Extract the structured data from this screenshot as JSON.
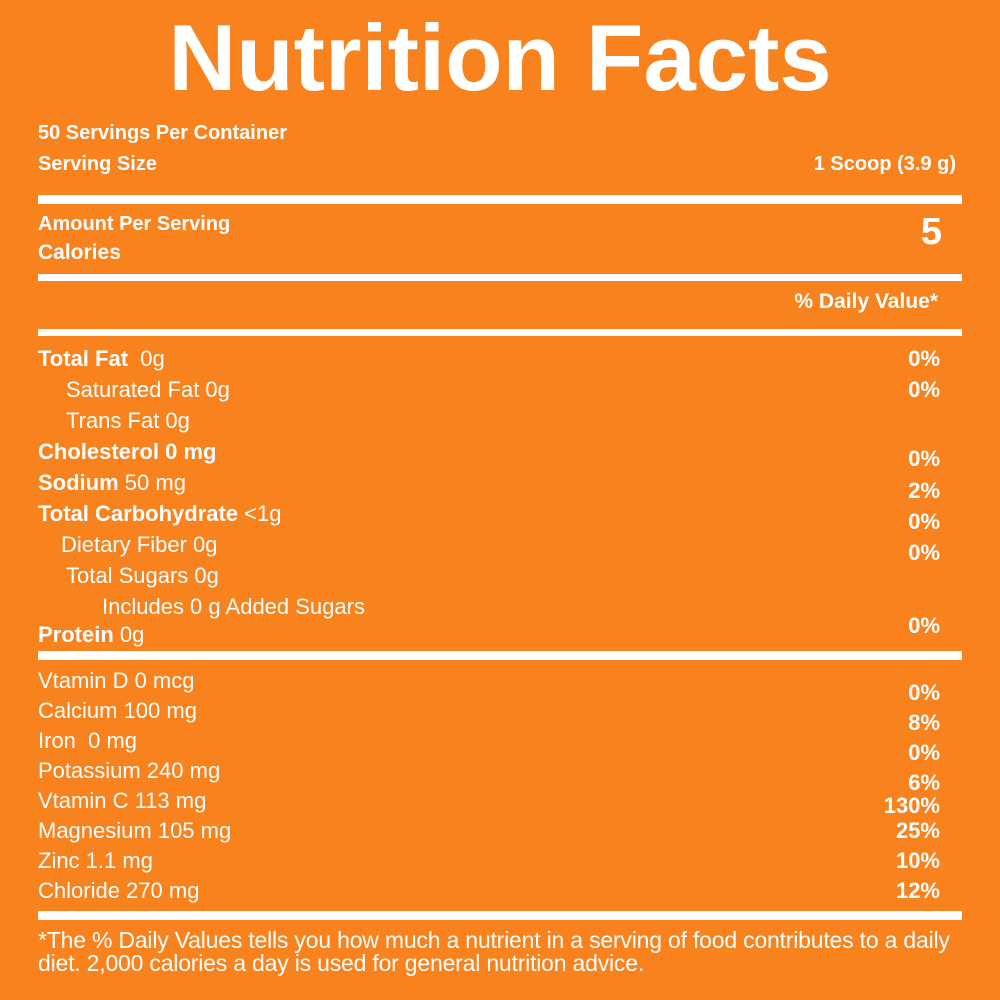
{
  "colors": {
    "background": "#F8821E",
    "text": "#FFFFFF"
  },
  "title": "Nutrition Facts",
  "servings": {
    "per_container": "50 Servings Per Container",
    "serving_size_label": "Serving Size",
    "serving_size_value": "1 Scoop (3.9 g)"
  },
  "calories": {
    "amount_per_serving_label": "Amount Per Serving",
    "calories_label": "Calories",
    "value": "5"
  },
  "daily_value_header": "% Daily Value*",
  "nutrients": [
    {
      "bold": "Total Fat",
      "rest": "  0g",
      "pct": "0%"
    },
    {
      "bold": "",
      "rest": "Saturated Fat 0g",
      "pct": "0%"
    },
    {
      "bold": "",
      "rest": "Trans Fat 0g",
      "pct": ""
    },
    {
      "bold": "Cholesterol 0 mg",
      "rest": "",
      "pct": "0%"
    },
    {
      "bold": "Sodium",
      "rest": " 50 mg",
      "pct": "2%"
    },
    {
      "bold": "Total Carbohydrate",
      "rest": " <1g",
      "pct": "0%"
    },
    {
      "bold": "",
      "rest": "Dietary Fiber 0g",
      "pct": "0%"
    },
    {
      "bold": "",
      "rest": "Total Sugars 0g",
      "pct": ""
    },
    {
      "bold": "",
      "rest": "Includes 0 g Added Sugars",
      "pct": ""
    },
    {
      "bold": "Protein",
      "rest": " 0g",
      "pct": "0%"
    }
  ],
  "vitamins": [
    {
      "label": "Vtamin D 0 mcg",
      "pct": "0%"
    },
    {
      "label": "Calcium 100 mg",
      "pct": "8%"
    },
    {
      "label": "Iron  0 mg",
      "pct": "0%"
    },
    {
      "label": "Potassium 240 mg",
      "pct": "6%"
    },
    {
      "label": "Vtamin C 113 mg",
      "pct": "130%"
    },
    {
      "label": "Magnesium 105 mg",
      "pct": "25%"
    },
    {
      "label": "Zinc 1.1 mg",
      "pct": "10%"
    },
    {
      "label": "Chloride 270 mg",
      "pct": "12%"
    }
  ],
  "footnote": "*The % Daily Values tells you how much a nutrient in a serving of food contributes to a daily diet. 2,000 calories a day is used for general nutrition advice."
}
